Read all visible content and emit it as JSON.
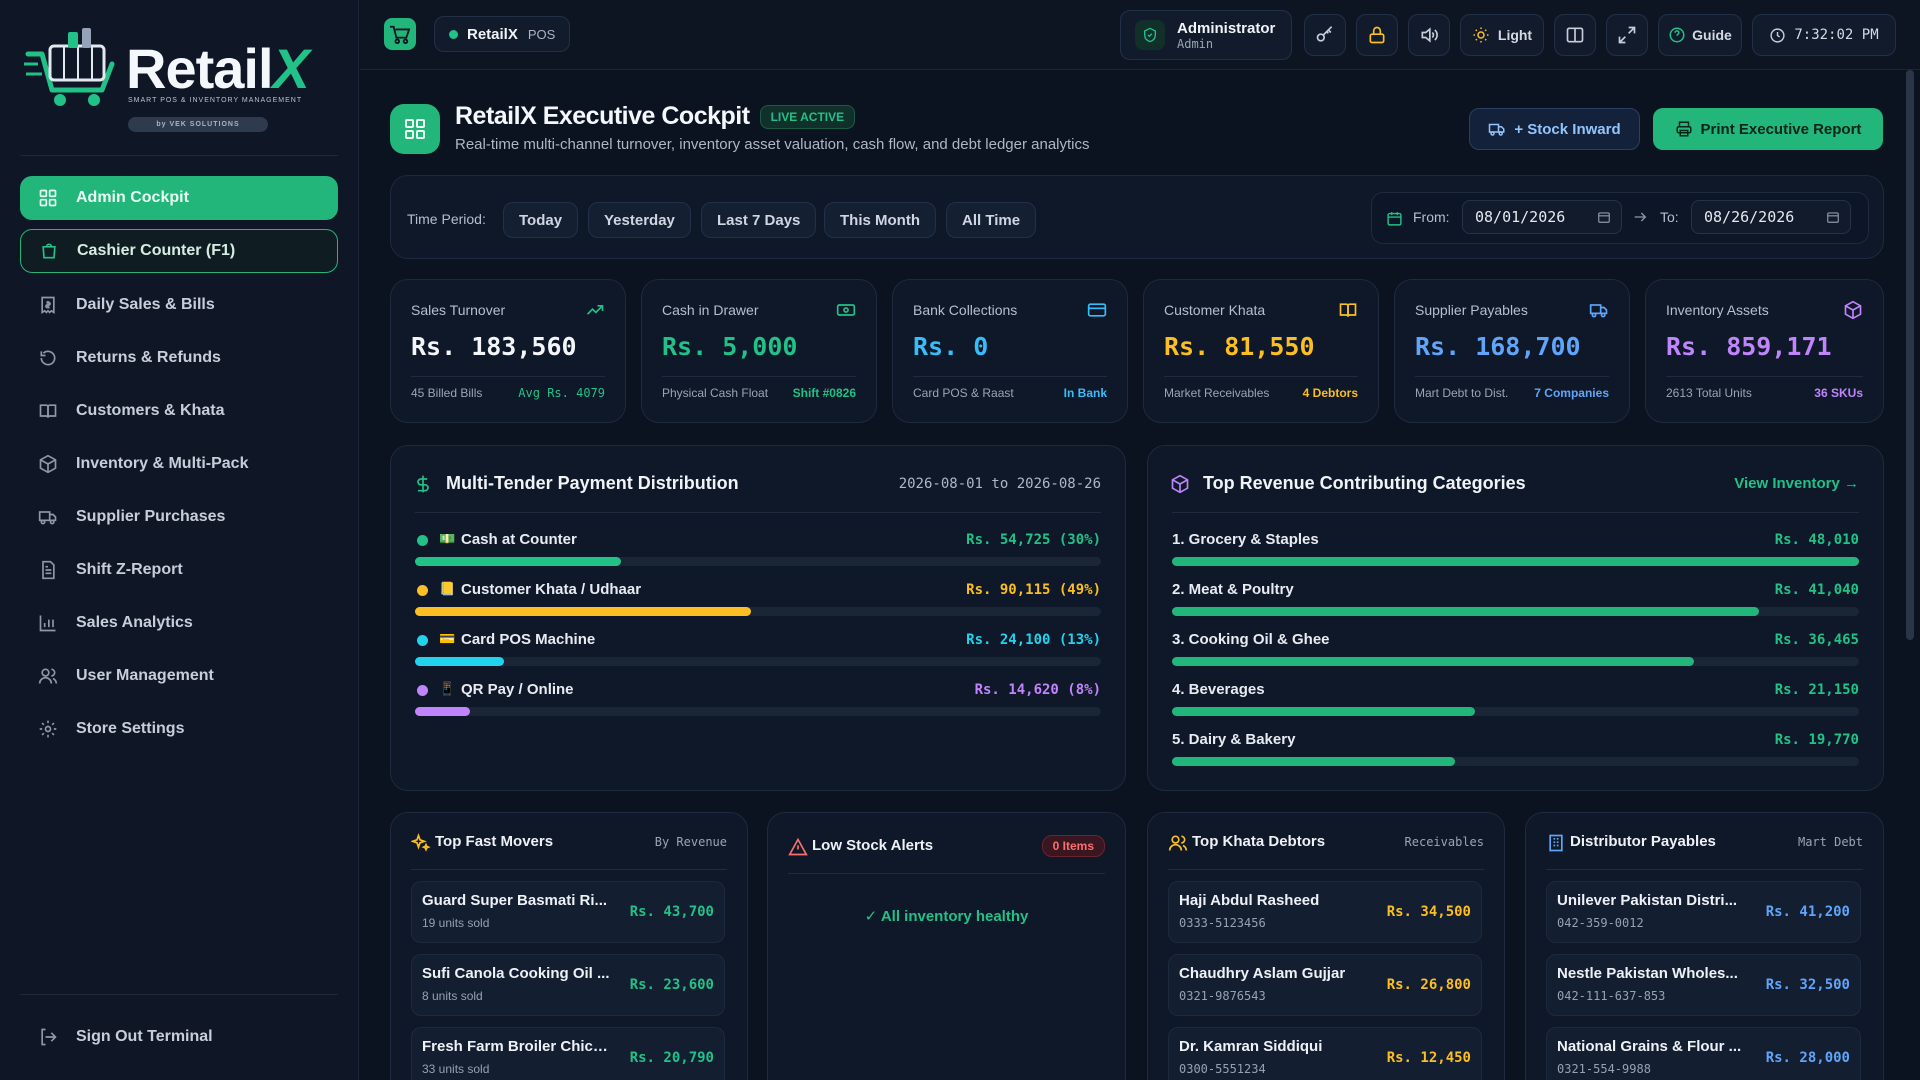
{
  "brand": {
    "name_main": "Retail",
    "name_x": "X",
    "tagline": "SMART POS & INVENTORY MANAGEMENT",
    "by_line": "by VEK SOLUTIONS"
  },
  "sidebar": {
    "items": [
      {
        "label": "Admin Cockpit",
        "icon": "grid-icon"
      },
      {
        "label": "Cashier Counter (F1)",
        "icon": "shopping-bag-icon"
      },
      {
        "label": "Daily Sales & Bills",
        "icon": "receipt-icon"
      },
      {
        "label": "Returns & Refunds",
        "icon": "undo-icon"
      },
      {
        "label": "Customers & Khata",
        "icon": "book-icon"
      },
      {
        "label": "Inventory & Multi-Pack",
        "icon": "box-icon"
      },
      {
        "label": "Supplier Purchases",
        "icon": "truck-icon"
      },
      {
        "label": "Shift Z-Report",
        "icon": "report-icon"
      },
      {
        "label": "Sales Analytics",
        "icon": "bar-chart-icon"
      },
      {
        "label": "User Management",
        "icon": "users-icon"
      },
      {
        "label": "Store Settings",
        "icon": "gear-icon"
      }
    ],
    "sign_out": "Sign Out Terminal"
  },
  "topbar": {
    "app_name": "RetailX",
    "app_mode": "POS",
    "user_name": "Administrator",
    "user_role": "Admin",
    "theme_label": "Light",
    "guide_label": "Guide",
    "clock": "7:32:02 PM"
  },
  "header": {
    "title": "RetailX Executive Cockpit",
    "badge": "LIVE ACTIVE",
    "subtitle": "Real-time multi-channel turnover, inventory asset valuation, cash flow, and debt ledger analytics",
    "stock_inward_btn": "+ Stock Inward",
    "print_btn": "Print Executive Report"
  },
  "filters": {
    "time_period_label": "Time Period:",
    "periods": [
      "Today",
      "Yesterday",
      "Last 7 Days",
      "This Month",
      "All Time"
    ],
    "from_label": "From:",
    "from_value": "08/01/2026",
    "to_label": "To:",
    "to_value": "08/26/2026"
  },
  "kpis": [
    {
      "label": "Sales Turnover",
      "value": "Rs. 183,560",
      "sub": "45 Billed Bills",
      "sub2": "Avg Rs. 4079",
      "color": "#f3f5f8",
      "sub2_color": "#22c187",
      "icon": "trending-up-icon"
    },
    {
      "label": "Cash in Drawer",
      "value": "Rs. 5,000",
      "sub": "Physical Cash Float",
      "sub2": "Shift #0826",
      "color": "#22c187",
      "sub2_color": "#22c187",
      "icon": "cash-icon"
    },
    {
      "label": "Bank Collections",
      "value": "Rs. 0",
      "sub": "Card POS & Raast",
      "sub2": "In Bank",
      "color": "#38bdf8",
      "sub2_color": "#38bdf8",
      "icon": "credit-card-icon"
    },
    {
      "label": "Customer Khata",
      "value": "Rs. 81,550",
      "sub": "Market Receivables",
      "sub2": "4 Debtors",
      "color": "#fbbf24",
      "sub2_color": "#fbbf24",
      "icon": "book-icon"
    },
    {
      "label": "Supplier Payables",
      "value": "Rs. 168,700",
      "sub": "Mart Debt to Dist.",
      "sub2": "7 Companies",
      "color": "#60a5fa",
      "sub2_color": "#60a5fa",
      "icon": "truck-icon"
    },
    {
      "label": "Inventory Assets",
      "value": "Rs. 859,171",
      "sub": "2613 Total Units",
      "sub2": "36 SKUs",
      "color": "#c084fc",
      "sub2_color": "#c084fc",
      "icon": "cube-icon"
    }
  ],
  "payments": {
    "title": "Multi-Tender Payment Distribution",
    "range": "2026-08-01 to 2026-08-26",
    "rows": [
      {
        "label": "Cash at Counter",
        "emoji": "💵",
        "value": "Rs. 54,725 (30%)",
        "pct": 30,
        "color": "#22c187"
      },
      {
        "label": "Customer Khata / Udhaar",
        "emoji": "📒",
        "value": "Rs. 90,115 (49%)",
        "pct": 49,
        "color": "#fbbf24"
      },
      {
        "label": "Card POS Machine",
        "emoji": "💳",
        "value": "Rs. 24,100 (13%)",
        "pct": 13,
        "color": "#22d3ee"
      },
      {
        "label": "QR Pay / Online",
        "emoji": "📱",
        "value": "Rs. 14,620 (8%)",
        "pct": 8,
        "color": "#c084fc"
      }
    ]
  },
  "categories": {
    "title": "Top Revenue Contributing Categories",
    "link": "View Inventory →",
    "rows": [
      {
        "label": "1. Grocery & Staples",
        "value": "Rs. 48,010",
        "amount": 48010
      },
      {
        "label": "2. Meat & Poultry",
        "value": "Rs. 41,040",
        "amount": 41040
      },
      {
        "label": "3. Cooking Oil & Ghee",
        "value": "Rs. 36,465",
        "amount": 36465
      },
      {
        "label": "4. Beverages",
        "value": "Rs. 21,150",
        "amount": 21150
      },
      {
        "label": "5. Dairy & Bakery",
        "value": "Rs. 19,770",
        "amount": 19770
      }
    ]
  },
  "fast_movers": {
    "title": "Top Fast Movers",
    "tag": "By Revenue",
    "items": [
      {
        "name": "Guard Super Basmati Ri...",
        "sub": "19 units sold",
        "amount": "Rs. 43,700"
      },
      {
        "name": "Sufi Canola Cooking Oil ...",
        "sub": "8 units sold",
        "amount": "Rs. 23,600"
      },
      {
        "name": "Fresh Farm Broiler Chick...",
        "sub": "33 units sold",
        "amount": "Rs. 20,790"
      }
    ]
  },
  "low_stock": {
    "title": "Low Stock Alerts",
    "badge": "0 Items",
    "message": "✓ All inventory healthy"
  },
  "debtors": {
    "title": "Top Khata Debtors",
    "tag": "Receivables",
    "items": [
      {
        "name": "Haji Abdul Rasheed",
        "sub": "0333-5123456",
        "amount": "Rs. 34,500"
      },
      {
        "name": "Chaudhry Aslam Gujjar",
        "sub": "0321-9876543",
        "amount": "Rs. 26,800"
      },
      {
        "name": "Dr. Kamran Siddiqui",
        "sub": "0300-5551234",
        "amount": "Rs. 12,450"
      }
    ]
  },
  "payables": {
    "title": "Distributor Payables",
    "tag": "Mart Debt",
    "items": [
      {
        "name": "Unilever Pakistan Distri...",
        "sub": "042-359-0012",
        "amount": "Rs. 41,200"
      },
      {
        "name": "Nestle Pakistan Wholes...",
        "sub": "042-111-637-853",
        "amount": "Rs. 32,500"
      },
      {
        "name": "National Grains & Flour ...",
        "sub": "0321-554-9988",
        "amount": "Rs. 28,000"
      }
    ]
  },
  "colors": {
    "accent": "#22b67b",
    "background": "#0b1220",
    "card": "#0f1828",
    "amber": "#fbbf24",
    "blue": "#60a5fa"
  }
}
